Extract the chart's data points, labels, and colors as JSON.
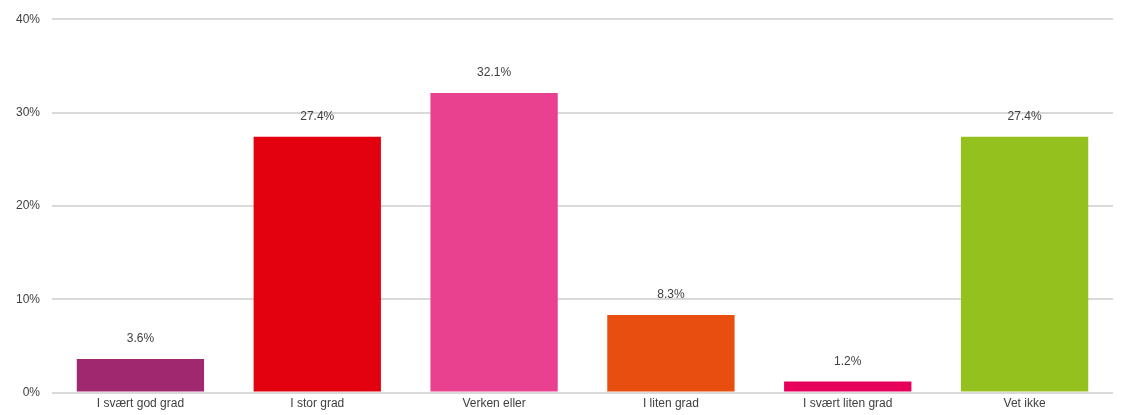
{
  "chart_data": {
    "type": "bar",
    "categories": [
      "I svært god grad",
      "I stor grad",
      "Verken eller",
      "I liten grad",
      "I svært liten grad",
      "Vet ikke"
    ],
    "values": [
      3.6,
      27.4,
      32.1,
      8.3,
      1.2,
      27.4
    ],
    "colors": [
      "#a0286e",
      "#e3000f",
      "#e94190",
      "#e84e0f",
      "#e6005a",
      "#95c11f"
    ],
    "value_labels": [
      "3.6%",
      "27.4%",
      "32.1%",
      "8.3%",
      "1.2%",
      "27.4%"
    ],
    "ylim": [
      0,
      40
    ],
    "yticks": [
      {
        "value": 0,
        "label": "0%"
      },
      {
        "value": 10,
        "label": "10%"
      },
      {
        "value": 20,
        "label": "20%"
      },
      {
        "value": 30,
        "label": "30%"
      },
      {
        "value": 40,
        "label": "40%"
      }
    ],
    "grid": "y",
    "legend": false
  }
}
